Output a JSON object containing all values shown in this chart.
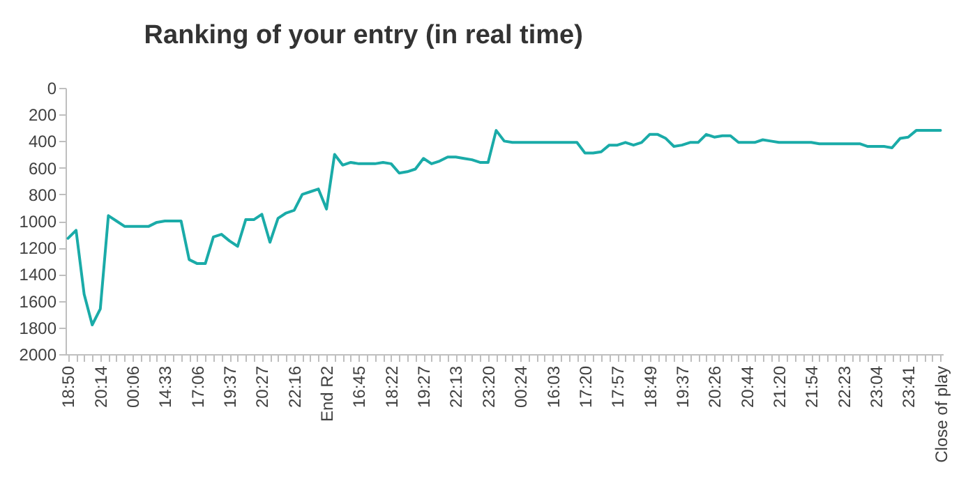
{
  "chart_data": {
    "type": "line",
    "title": "Ranking of your entry (in real time)",
    "categories": [
      "18:50",
      null,
      null,
      null,
      "20:14",
      null,
      null,
      null,
      "00:06",
      null,
      null,
      null,
      "14:33",
      null,
      null,
      null,
      "17:06",
      null,
      null,
      null,
      "19:37",
      null,
      null,
      null,
      "20:27",
      null,
      null,
      null,
      "22:16",
      null,
      null,
      null,
      "End R2",
      null,
      null,
      null,
      "16:45",
      null,
      null,
      null,
      "18:22",
      null,
      null,
      null,
      "19:27",
      null,
      null,
      null,
      "22:13",
      null,
      null,
      null,
      "23:20",
      null,
      null,
      null,
      "00:24",
      null,
      null,
      null,
      "16:03",
      null,
      null,
      null,
      "17:20",
      null,
      null,
      null,
      "17:57",
      null,
      null,
      null,
      "18:49",
      null,
      null,
      null,
      "19:37",
      null,
      null,
      null,
      "20:26",
      null,
      null,
      null,
      "20:44",
      null,
      null,
      null,
      "21:20",
      null,
      null,
      null,
      "21:54",
      null,
      null,
      null,
      "22:23",
      null,
      null,
      null,
      "23:04",
      null,
      null,
      null,
      "23:41",
      null,
      null,
      null,
      "Close of play"
    ],
    "series": [
      {
        "color": "#1aaba8",
        "values": [
          1130,
          1070,
          1550,
          1780,
          1660,
          960,
          1000,
          1040,
          1040,
          1040,
          1040,
          1010,
          1000,
          1000,
          1000,
          1290,
          1320,
          1320,
          1120,
          1100,
          1150,
          1190,
          990,
          990,
          950,
          1160,
          980,
          940,
          920,
          800,
          780,
          760,
          910,
          500,
          580,
          560,
          570,
          570,
          570,
          560,
          570,
          640,
          630,
          610,
          530,
          570,
          550,
          520,
          520,
          530,
          540,
          560,
          560,
          320,
          400,
          410,
          410,
          410,
          410,
          410,
          410,
          410,
          410,
          410,
          490,
          490,
          480,
          430,
          430,
          410,
          430,
          410,
          350,
          350,
          380,
          440,
          430,
          410,
          410,
          350,
          370,
          360,
          360,
          410,
          410,
          410,
          390,
          400,
          410,
          410,
          410,
          410,
          410,
          420,
          420,
          420,
          420,
          420,
          420,
          440,
          440,
          440,
          450,
          380,
          370,
          320,
          320,
          320,
          320
        ]
      }
    ],
    "ylim": [
      2000,
      0
    ],
    "yticks": [
      0,
      200,
      400,
      600,
      800,
      1000,
      1200,
      1400,
      1600,
      1800,
      2000
    ],
    "grid": false,
    "marker": "none",
    "line_style": "solid"
  }
}
